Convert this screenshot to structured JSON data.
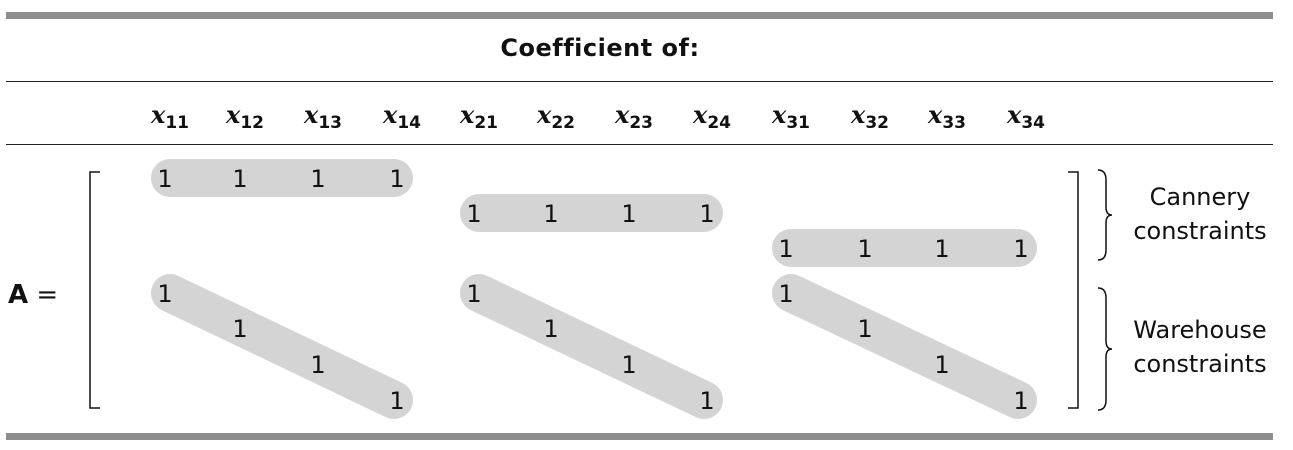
{
  "table": {
    "heading": "Coefficient of:",
    "variables": [
      {
        "base": "x",
        "sub": "11"
      },
      {
        "base": "x",
        "sub": "12"
      },
      {
        "base": "x",
        "sub": "13"
      },
      {
        "base": "x",
        "sub": "14"
      },
      {
        "base": "x",
        "sub": "21"
      },
      {
        "base": "x",
        "sub": "22"
      },
      {
        "base": "x",
        "sub": "23"
      },
      {
        "base": "x",
        "sub": "24"
      },
      {
        "base": "x",
        "sub": "31"
      },
      {
        "base": "x",
        "sub": "32"
      },
      {
        "base": "x",
        "sub": "33"
      },
      {
        "base": "x",
        "sub": "34"
      }
    ],
    "matrix_name": "A",
    "equals": "=",
    "rows": [
      [
        "1",
        "1",
        "1",
        "1",
        "",
        "",
        "",
        "",
        "",
        "",
        "",
        ""
      ],
      [
        "",
        "",
        "",
        "",
        "1",
        "1",
        "1",
        "1",
        "",
        "",
        "",
        ""
      ],
      [
        "",
        "",
        "",
        "",
        "",
        "",
        "",
        "",
        "1",
        "1",
        "1",
        "1"
      ],
      [
        "1",
        "",
        "",
        "",
        "1",
        "",
        "",
        "",
        "1",
        "",
        "",
        ""
      ],
      [
        "",
        "1",
        "",
        "",
        "",
        "1",
        "",
        "",
        "",
        "1",
        "",
        ""
      ],
      [
        "",
        "",
        "1",
        "",
        "",
        "",
        "1",
        "",
        "",
        "",
        "1",
        ""
      ],
      [
        "",
        "",
        "",
        "1",
        "",
        "",
        "",
        "1",
        "",
        "",
        "",
        "1"
      ]
    ],
    "groups": [
      {
        "label_line1": "Cannery",
        "label_line2": "constraints"
      },
      {
        "label_line1": "Warehouse",
        "label_line2": "constraints"
      }
    ],
    "highlight_color": "#d4d4d4",
    "rule_color": "#8e8e8e"
  }
}
